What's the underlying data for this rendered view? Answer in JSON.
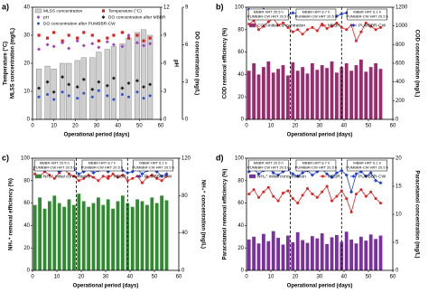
{
  "chart_data": [
    {
      "type": "combo",
      "label": "a)",
      "xlabel": "Operational period (days)",
      "ylabel": [
        "Temperature (°C)",
        "MLSS concentration (mg/L)"
      ],
      "y2label": [
        "pH"
      ],
      "y3label": [
        "DO concentration (mg/L)"
      ],
      "xlim": [
        0,
        60
      ],
      "xticks": [
        0,
        10,
        20,
        30,
        40,
        50,
        60
      ],
      "ylim": [
        0,
        40
      ],
      "yticks": [
        0,
        10,
        20,
        30,
        40
      ],
      "y2lim": [
        0,
        12
      ],
      "y2ticks": [
        0,
        3,
        6,
        9,
        12
      ],
      "y3lim": [
        0,
        9
      ],
      "y3ticks": [
        0,
        3,
        6,
        9
      ],
      "legend": "top-left",
      "x": [
        3,
        7,
        10,
        14,
        17,
        21,
        24,
        28,
        31,
        35,
        38,
        42,
        45,
        49,
        52,
        55
      ],
      "series": [
        {
          "name": "MLSS concentration",
          "kind": "bar",
          "axis": "y",
          "color": "#cfcfcf",
          "values": [
            18,
            19,
            18,
            20,
            20,
            21,
            22,
            22,
            24,
            25,
            26,
            27,
            29,
            31,
            32,
            30
          ]
        },
        {
          "name": "Temperature (°C)",
          "kind": "points",
          "marker": "square",
          "axis": "y",
          "color": "#e02020",
          "values": [
            30,
            29,
            31,
            28,
            30,
            29,
            31,
            30,
            28,
            29,
            30,
            31,
            29,
            30,
            28,
            29
          ]
        },
        {
          "name": "pH",
          "kind": "points",
          "marker": "diamond",
          "axis": "y2",
          "color": "#a040c0",
          "values": [
            7.5,
            8.0,
            7.8,
            8.2,
            7.6,
            8.4,
            7.9,
            8.1,
            7.7,
            8.3,
            8.0,
            7.8,
            9.0,
            8.2,
            7.9,
            8.1
          ]
        },
        {
          "name": "DO concentration after MBBR",
          "kind": "points",
          "marker": "diamond",
          "axis": "y3",
          "color": "#222222",
          "values": [
            2.5,
            3.0,
            2.2,
            3.4,
            2.8,
            2.6,
            3.2,
            2.4,
            3.0,
            2.7,
            3.3,
            2.5,
            2.9,
            3.1,
            2.6,
            2.8
          ]
        },
        {
          "name": "DO concentration after PUMBBR-CW",
          "kind": "points",
          "marker": "circle",
          "axis": "y3",
          "color": "#3050d0",
          "values": [
            1.8,
            2.0,
            1.6,
            2.2,
            1.9,
            1.7,
            2.1,
            1.8,
            2.3,
            1.9,
            1.6,
            2.0,
            1.8,
            2.2,
            1.7,
            1.9
          ]
        }
      ]
    },
    {
      "type": "combo",
      "label": "b)",
      "xlabel": "Operational period (days)",
      "ylabel": [
        "COD removal efficiency (%)"
      ],
      "y2label": [
        "COD concentration (mg/L)"
      ],
      "xlim": [
        0,
        60
      ],
      "xticks": [
        0,
        10,
        20,
        30,
        40,
        50,
        60
      ],
      "ylim": [
        0,
        100
      ],
      "yticks": [
        0,
        20,
        40,
        60,
        80,
        100
      ],
      "y2lim": [
        0,
        1200
      ],
      "y2ticks": [
        0,
        200,
        400,
        600,
        800,
        1000,
        1200
      ],
      "legend": "top",
      "dividers": [
        18,
        39
      ],
      "annotations": [
        [
          "MBBR HRT 20.5 h",
          "PUMBBR-CW HRT 20.5 h"
        ],
        [
          "MBBR HRT 8.7 h",
          "PUMBBR-CW HRT 20.5 h"
        ],
        [
          "MBBR HRT 6.1 h",
          "PUMBBR-CW HRT 20.5 h"
        ]
      ],
      "x": [
        1,
        3,
        5,
        7,
        9,
        11,
        13,
        15,
        17,
        19,
        21,
        23,
        25,
        27,
        29,
        31,
        33,
        35,
        37,
        39,
        41,
        43,
        45,
        47,
        49,
        51,
        53,
        55
      ],
      "series": [
        {
          "name": "COD initial concentration",
          "kind": "bar",
          "axis": "y2",
          "color": "#9b2a6e",
          "values": [
            520,
            600,
            480,
            560,
            620,
            500,
            540,
            580,
            470,
            610,
            520,
            560,
            490,
            600,
            530,
            580,
            550,
            620,
            500,
            560,
            600,
            520,
            580,
            640,
            510,
            560,
            600,
            540
          ]
        },
        {
          "name": "MBBR",
          "kind": "line",
          "marker": "circle",
          "axis": "y",
          "color": "#e02020",
          "values": [
            85,
            88,
            80,
            83,
            87,
            90,
            84,
            86,
            82,
            78,
            80,
            76,
            80,
            82,
            79,
            85,
            81,
            83,
            86,
            82,
            80,
            84,
            70,
            78,
            86,
            83,
            80,
            82
          ]
        },
        {
          "name": "PUMBBR-CW",
          "kind": "line",
          "marker": "diamond",
          "axis": "y",
          "color": "#2040d0",
          "values": [
            98,
            97,
            96,
            98,
            97,
            95,
            96,
            94,
            93,
            95,
            94,
            93,
            92,
            94,
            93,
            92,
            93,
            94,
            92,
            94,
            95,
            93,
            92,
            94,
            93,
            94,
            92,
            94
          ]
        }
      ]
    },
    {
      "type": "combo",
      "label": "c)",
      "xlabel": "Operational period (days)",
      "ylabel": [
        "NH₄⁺ removal efficiency (%)"
      ],
      "y2label": [
        "NH₄⁺ concentration (mg/L)"
      ],
      "xlim": [
        0,
        60
      ],
      "xticks": [
        0,
        10,
        20,
        30,
        40,
        50,
        60
      ],
      "ylim": [
        0,
        100
      ],
      "yticks": [
        0,
        20,
        40,
        60,
        80,
        100
      ],
      "y2lim": [
        0,
        120
      ],
      "y2ticks": [
        0,
        40,
        80,
        120
      ],
      "legend": "top",
      "dividers": [
        18,
        39
      ],
      "annotations": [
        [
          "MBBR HRT 20.5 h",
          "PUMBBR-CW HRT 20.5 h"
        ],
        [
          "MBBR HRT 8.7 h",
          "PUMBBR-CW HRT 20.5 h"
        ],
        [
          "MBBR HRT 6.1 h",
          "PUMBBR-CW HRT 20.5 h"
        ]
      ],
      "x": [
        1,
        3,
        5,
        7,
        9,
        11,
        13,
        15,
        17,
        19,
        21,
        23,
        25,
        27,
        29,
        31,
        33,
        35,
        37,
        39,
        41,
        43,
        45,
        47,
        49,
        51,
        53,
        55
      ],
      "series": [
        {
          "name": "NH₄⁺ initial concentration",
          "kind": "bar",
          "axis": "y2",
          "color": "#2e8b2e",
          "values": [
            70,
            78,
            66,
            74,
            80,
            72,
            68,
            76,
            70,
            82,
            74,
            68,
            72,
            78,
            70,
            76,
            66,
            74,
            80,
            72,
            68,
            76,
            74,
            70,
            78,
            72,
            80,
            75
          ]
        },
        {
          "name": "MBBR",
          "kind": "line",
          "marker": "circle",
          "axis": "y",
          "color": "#e02020",
          "values": [
            86,
            84,
            88,
            85,
            82,
            87,
            90,
            86,
            84,
            80,
            82,
            85,
            83,
            80,
            84,
            82,
            86,
            83,
            85,
            80,
            82,
            84,
            78,
            83,
            85,
            82,
            80,
            84
          ]
        },
        {
          "name": "PUMBBR-CW",
          "kind": "line",
          "marker": "diamond",
          "axis": "y",
          "color": "#2040d0",
          "values": [
            90,
            91,
            89,
            92,
            90,
            88,
            91,
            93,
            90,
            86,
            88,
            90,
            87,
            89,
            91,
            88,
            90,
            92,
            89,
            87,
            88,
            90,
            86,
            89,
            91,
            88,
            84,
            86
          ]
        }
      ]
    },
    {
      "type": "combo",
      "label": "d)",
      "xlabel": "Operational period (days)",
      "ylabel": [
        "Paracetamol removal efficiency (%)"
      ],
      "y2label": [
        "Paracetamol concentration (mg/L)"
      ],
      "xlim": [
        0,
        60
      ],
      "xticks": [
        0,
        10,
        20,
        30,
        40,
        50,
        60
      ],
      "ylim": [
        0,
        100
      ],
      "yticks": [
        0,
        20,
        40,
        60,
        80,
        100
      ],
      "y2lim": [
        0,
        20
      ],
      "y2ticks": [
        0,
        5,
        10,
        15,
        20
      ],
      "legend": "top",
      "dividers": [
        18,
        39
      ],
      "annotations": [
        [
          "MBBR HRT 20.5 h",
          "PUMBBR-CW HRT 20.5 h"
        ],
        [
          "MBBR HRT 8.7 h",
          "PUMBBR-CW HRT 20.5 h"
        ],
        [
          "MBBR HRT 6.1 h",
          "PUMBBR-CW HRT 20.5 h"
        ]
      ],
      "x": [
        1,
        3,
        5,
        7,
        9,
        11,
        13,
        15,
        17,
        19,
        21,
        23,
        25,
        27,
        29,
        31,
        33,
        35,
        37,
        39,
        41,
        43,
        45,
        47,
        49,
        51,
        53,
        55
      ],
      "series": [
        {
          "name": "NH₄⁺ initial concentration",
          "kind": "bar",
          "axis": "y2",
          "color": "#7b2fa0",
          "values": [
            5.5,
            6.0,
            4.8,
            6.5,
            5.2,
            7.0,
            5.8,
            4.6,
            6.2,
            5.0,
            6.8,
            5.4,
            4.9,
            6.1,
            5.7,
            6.6,
            4.7,
            5.9,
            6.3,
            5.1,
            6.9,
            5.5,
            4.8,
            6.0,
            5.3,
            6.4,
            5.6,
            6.2
          ]
        },
        {
          "name": "MBBR",
          "kind": "line",
          "marker": "circle",
          "axis": "y",
          "color": "#e02020",
          "values": [
            68,
            72,
            65,
            70,
            74,
            66,
            62,
            69,
            71,
            64,
            60,
            67,
            73,
            68,
            65,
            70,
            75,
            62,
            66,
            71,
            64,
            52,
            68,
            72,
            66,
            70,
            64,
            60
          ]
        },
        {
          "name": "PUMBBR-CW",
          "kind": "line",
          "marker": "diamond",
          "axis": "y",
          "color": "#2040d0",
          "values": [
            88,
            90,
            86,
            89,
            91,
            87,
            85,
            88,
            90,
            86,
            84,
            87,
            89,
            85,
            88,
            90,
            86,
            83,
            87,
            89,
            85,
            70,
            86,
            88,
            84,
            87,
            80,
            78
          ]
        }
      ]
    }
  ]
}
